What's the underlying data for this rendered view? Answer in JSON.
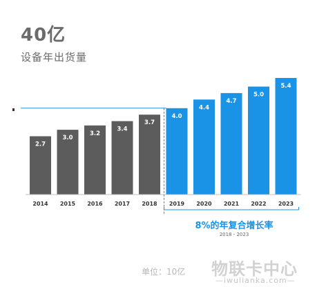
{
  "header": {
    "value": "40亿",
    "caption": "设备年出货量"
  },
  "growth": {
    "label": "8%的年复合增长率",
    "range": "2018 - 2023"
  },
  "unit_label": "单位：10亿",
  "watermark": {
    "main": "物联卡中心",
    "sub": "—iwulianka.com—"
  },
  "colors": {
    "historical": "#5c5c5c",
    "forecast": "#1a93e6",
    "growth_text": "#1a93e6"
  },
  "chart_data": {
    "type": "bar",
    "categories": [
      "2014",
      "2015",
      "2016",
      "2017",
      "2018",
      "2019",
      "2020",
      "2021",
      "2022",
      "2023"
    ],
    "values": [
      2.7,
      3.0,
      3.2,
      3.4,
      3.7,
      4.0,
      4.4,
      4.7,
      5.0,
      5.4
    ],
    "value_labels": [
      "2.7",
      "3.0",
      "3.2",
      "3.4",
      "3.7",
      "4.0",
      "4.4",
      "4.7",
      "5.0",
      "5.4"
    ],
    "series_colors": [
      "historical",
      "historical",
      "historical",
      "historical",
      "historical",
      "forecast",
      "forecast",
      "forecast",
      "forecast",
      "forecast"
    ],
    "reference_value": 4.0,
    "grid": false,
    "legend": "none"
  }
}
